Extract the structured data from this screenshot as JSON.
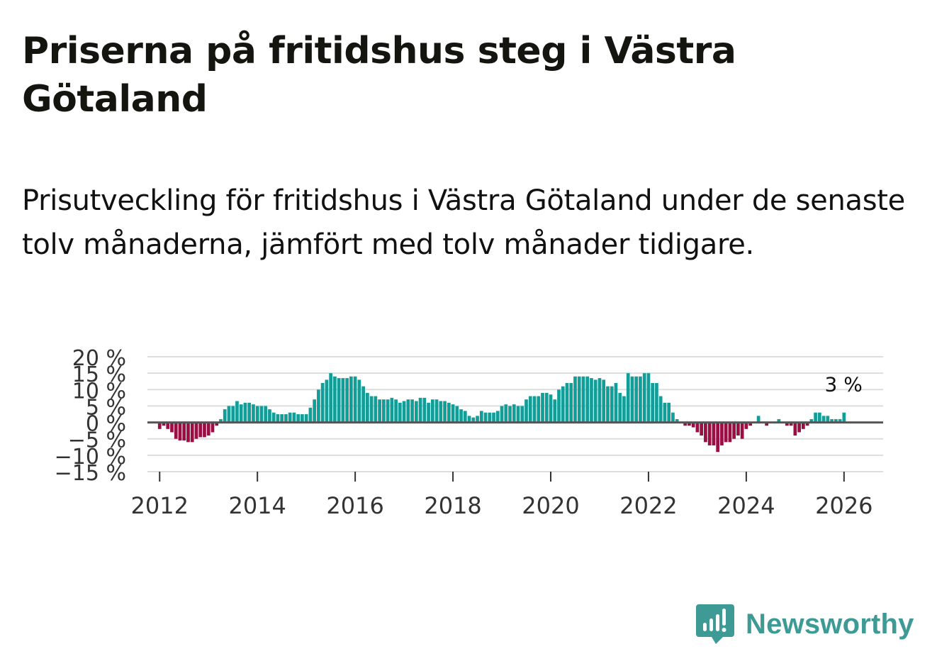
{
  "title": "Priserna på fritidshus steg i Västra Götaland",
  "subtitle": "Prisutveckling för fritidshus i Västra Götaland under de senaste tolv månaderna, jämfört med tolv månader tidigare.",
  "brand": {
    "name": "Newsworthy",
    "color": "#3d9a95",
    "icon": "newsworthy-chart-icon"
  },
  "colors": {
    "positive": "#129e98",
    "negative": "#9a0e43",
    "grid": "#dddddd",
    "zero_line": "#555555",
    "axis_text": "#333333"
  },
  "chart_data": {
    "type": "bar",
    "title": "Priserna på fritidshus steg i Västra Götaland",
    "ylabel": "",
    "xlabel": "",
    "ylim": [
      -15,
      20
    ],
    "xlim": [
      2011.75,
      2026.8
    ],
    "yticks": [
      -15,
      -10,
      -5,
      0,
      5,
      10,
      15,
      20
    ],
    "ytick_labels": [
      "−15 %",
      "−10 %",
      "−5 %",
      "0 %",
      "5 %",
      "10 %",
      "15 %",
      "20 %"
    ],
    "xticks": [
      2012,
      2014,
      2016,
      2018,
      2020,
      2022,
      2024,
      2026
    ],
    "xtick_labels": [
      "2012",
      "2014",
      "2016",
      "2018",
      "2020",
      "2022",
      "2024",
      "2026"
    ],
    "start": {
      "year": 2012,
      "month": 1
    },
    "step_months": 1,
    "values": [
      -2,
      -1,
      -2,
      -3,
      -5,
      -5.5,
      -5.5,
      -6,
      -6,
      -5,
      -4.5,
      -4.5,
      -4,
      -3,
      -1,
      1,
      4,
      5,
      5,
      6.5,
      5.5,
      6,
      6,
      5.5,
      5,
      5,
      5,
      4,
      3,
      2.5,
      2.5,
      2.5,
      3,
      3,
      2.5,
      2.5,
      2.5,
      4.5,
      7,
      10,
      12,
      13,
      15,
      14,
      13.5,
      13.5,
      13.5,
      14,
      14,
      13,
      11,
      9,
      8,
      8,
      7,
      7,
      7,
      7.5,
      7,
      6,
      6.5,
      7,
      7,
      6.5,
      7.5,
      7.5,
      6,
      7,
      7,
      6.5,
      6.5,
      6,
      5.5,
      5,
      4,
      3.5,
      2,
      1.5,
      2,
      3.5,
      3,
      3,
      3,
      3.5,
      5,
      5.5,
      5,
      5.5,
      5,
      5,
      7,
      8,
      8,
      8,
      9,
      9,
      8.5,
      7,
      10,
      11,
      12,
      12,
      14,
      14,
      14,
      14,
      13.5,
      13,
      13.5,
      13,
      11,
      11,
      12,
      9,
      8,
      15,
      14,
      14,
      14,
      15,
      15,
      12,
      12,
      8,
      6,
      6,
      3,
      1,
      0,
      -1,
      -1,
      -1.5,
      -3,
      -4,
      -6,
      -7,
      -7,
      -9,
      -7,
      -6,
      -6,
      -5,
      -4,
      -5,
      -2,
      -1,
      0,
      2,
      0,
      -1,
      0,
      0,
      1,
      0,
      -1,
      -1,
      -4,
      -3,
      -2,
      -1,
      1,
      3,
      3,
      2,
      2,
      1,
      1,
      1,
      3
    ],
    "annotation": {
      "text": "3 %",
      "value": 3,
      "position": "last bar"
    }
  }
}
